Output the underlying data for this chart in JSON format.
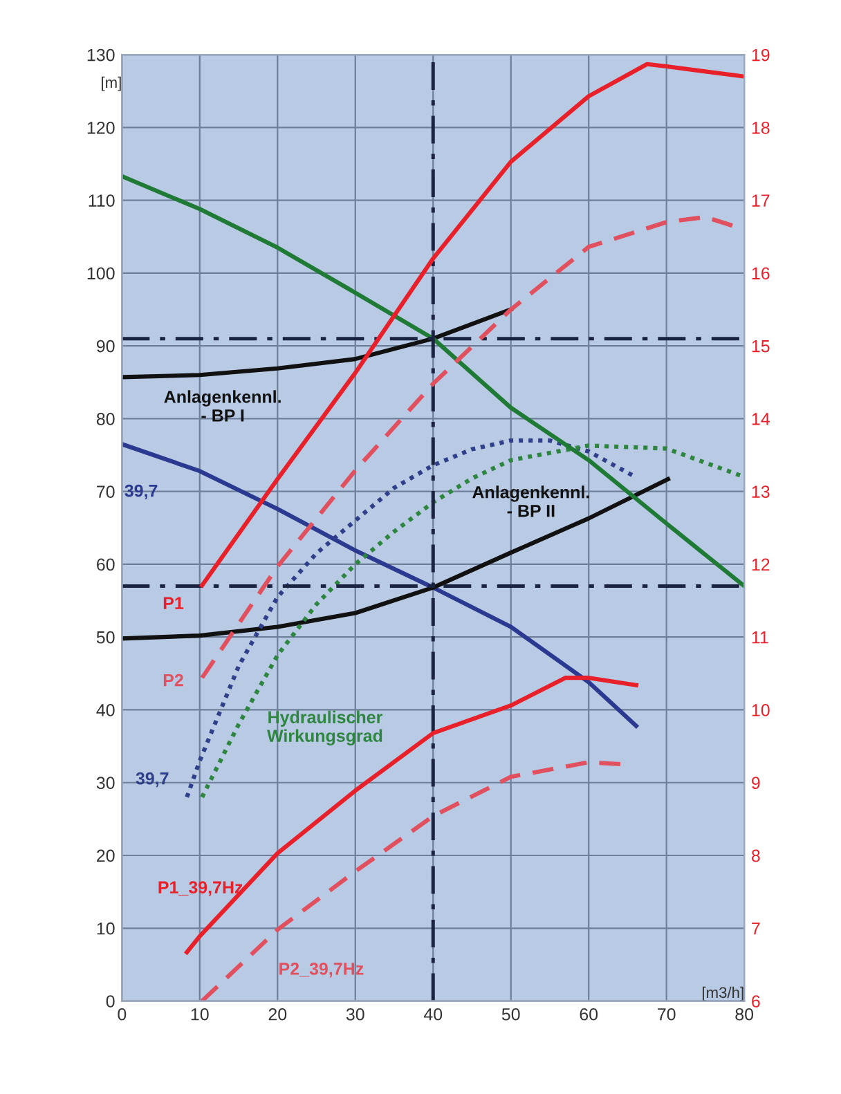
{
  "chart_data": {
    "type": "line",
    "xlabel": "[m3/h]",
    "ylabel": "[m]",
    "xlim": [
      0,
      80
    ],
    "xticks": [
      0,
      10,
      20,
      30,
      40,
      50,
      60,
      70,
      80
    ],
    "ylim": [
      0,
      130
    ],
    "yticks": [
      0,
      10,
      20,
      30,
      40,
      50,
      60,
      70,
      80,
      90,
      100,
      110,
      120,
      130
    ],
    "y2lim": [
      6,
      19
    ],
    "y2ticks": [
      6,
      7,
      8,
      9,
      10,
      11,
      12,
      13,
      14,
      15,
      16,
      17,
      18,
      19
    ],
    "grid": true,
    "legend": false,
    "marker": "none",
    "series": [
      {
        "name": "Anlagenkennl.\n- BP I",
        "color": "#111111",
        "line_style": "solid",
        "x": [
          0,
          10,
          20,
          30,
          40,
          50
        ],
        "values": [
          85.7,
          86,
          86.9,
          88.2,
          91,
          95
        ]
      },
      {
        "name": "39,7",
        "color": "#2b3990",
        "line_style": "solid",
        "x": [
          0,
          10,
          20,
          30,
          40,
          50,
          60,
          66.1
        ],
        "values": [
          76.5,
          72.8,
          67.6,
          61.9,
          56.8,
          51.4,
          43.8,
          37.8
        ]
      },
      {
        "name": "Anlagenkennl.\n- BP II",
        "color": "#111111",
        "line_style": "solid",
        "x": [
          0,
          10,
          20,
          30,
          40,
          50,
          60,
          70.2
        ],
        "values": [
          49.8,
          50.2,
          51.4,
          53.3,
          56.8,
          61.6,
          66.3,
          71.7
        ]
      },
      {
        "name": "P1",
        "color": "#e8202a",
        "line_style": "solid",
        "axis": "y2",
        "x": [
          10.3,
          20,
          30,
          40,
          50,
          60,
          67.5,
          70,
          80
        ],
        "values": [
          11.71,
          13.17,
          14.63,
          16.2,
          17.53,
          18.43,
          18.87,
          18.84,
          18.7
        ]
      },
      {
        "name": "P2",
        "color": "#e0505e",
        "line_style": "dashed",
        "axis": "y2",
        "x": [
          10.3,
          20,
          30,
          40,
          50,
          60,
          70,
          75,
          80
        ],
        "values": [
          10.44,
          11.97,
          13.29,
          14.48,
          15.5,
          16.36,
          16.7,
          16.77,
          16.6
        ]
      },
      {
        "name": "39,7",
        "color": "#2f3f8a",
        "line_style": "dotted",
        "x": [
          8.35,
          10,
          15,
          20,
          25,
          30,
          35,
          40,
          45,
          50,
          55,
          60,
          66
        ],
        "values": [
          28,
          33,
          46,
          55.5,
          61.5,
          66,
          70.5,
          73.6,
          75.8,
          77,
          77,
          75.5,
          72
        ]
      },
      {
        "name": "Hydraulischer\nWirkungsgrad",
        "color": "#2e8540",
        "line_style": "dotted",
        "x": [
          10.3,
          15,
          20,
          25,
          30,
          35,
          40,
          45,
          50,
          60,
          70,
          80
        ],
        "values": [
          28,
          38,
          47.5,
          54.5,
          60,
          64.5,
          68.5,
          71.8,
          74.3,
          76.3,
          75.9,
          72
        ]
      },
      {
        "name": "P1_39,7Hz",
        "color": "#e8202a",
        "line_style": "solid",
        "axis": "y2",
        "x": [
          8.35,
          10,
          20,
          30,
          40,
          50,
          57,
          60,
          66.1
        ],
        "values": [
          6.67,
          6.89,
          8.03,
          8.89,
          9.68,
          10.06,
          10.44,
          10.44,
          10.34
        ]
      },
      {
        "name": "P2_39,7Hz",
        "color": "#e0505e",
        "line_style": "dashed",
        "axis": "y2",
        "x": [
          10.3,
          20,
          30,
          40,
          50,
          60,
          64.6
        ],
        "values": [
          6.0,
          6.98,
          7.78,
          8.54,
          9.08,
          9.28,
          9.25
        ]
      },
      {
        "color": "#1f7a35",
        "line_style": "solid",
        "x": [
          0,
          10,
          20,
          30,
          40,
          50,
          60,
          70,
          80
        ],
        "values": [
          113.3,
          108.8,
          103.5,
          97.3,
          91,
          81.5,
          74.3,
          65.6,
          57
        ]
      }
    ],
    "ref_lines": [
      {
        "axis": "y",
        "value": 91,
        "color": "#1a2340",
        "line_style": "dashdot"
      },
      {
        "axis": "y",
        "value": 57,
        "color": "#1a2340",
        "line_style": "dashdot"
      },
      {
        "axis": "x",
        "value": 40,
        "color": "#1a2340",
        "line_style": "dashdot"
      }
    ]
  }
}
